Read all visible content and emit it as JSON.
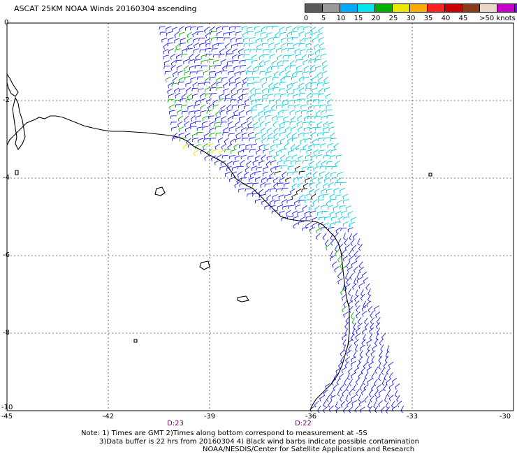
{
  "title": "ASCAT 25KM NOAA Winds 20160304 ascending",
  "legend": {
    "swatches": [
      {
        "color": "#5a5a5a"
      },
      {
        "color": "#9a9a9a"
      },
      {
        "color": "#00aaff"
      },
      {
        "color": "#00e5ee"
      },
      {
        "color": "#00b000"
      },
      {
        "color": "#e8e800"
      },
      {
        "color": "#ffaa00"
      },
      {
        "color": "#ff2020"
      },
      {
        "color": "#cc0000"
      },
      {
        "color": "#8b3a1a"
      },
      {
        "color": "#e8d8c8"
      },
      {
        "color": "#cc00cc"
      },
      {
        "color": "#8800ff"
      }
    ],
    "labels": [
      "0",
      "5",
      "10",
      "15",
      "20",
      "25",
      "30",
      "35",
      "40",
      "45",
      ">50 knots"
    ]
  },
  "axes": {
    "lat_labels": [
      "0",
      "-2",
      "-4",
      "-6",
      "-8",
      "-10"
    ],
    "lon_labels": [
      "-45",
      "-42",
      "-39",
      "-36",
      "-33",
      "-30"
    ],
    "lat_range": [
      -10,
      0
    ],
    "lon_range": [
      -45,
      -30
    ],
    "grid": "dashed"
  },
  "times": [
    {
      "label": "D:23"
    },
    {
      "label": "D:22"
    }
  ],
  "notes": [
    "Note: 1) Times are GMT 2)Times along bottom correspond to measurement at -5S",
    "3)Data buffer is 22 hrs from 20160304 4) Black wind barbs indicate possible contamination",
    "NOAA/NESDIS/Center for Satellite Applications and Research"
  ],
  "colors": {
    "coast": "#000000",
    "grid": "#000000",
    "barb_blue": "#1a1aff",
    "barb_cyan": "#00ccdd",
    "barb_green": "#00b000",
    "barb_yellow": "#e8e800",
    "barb_black": "#000000"
  }
}
